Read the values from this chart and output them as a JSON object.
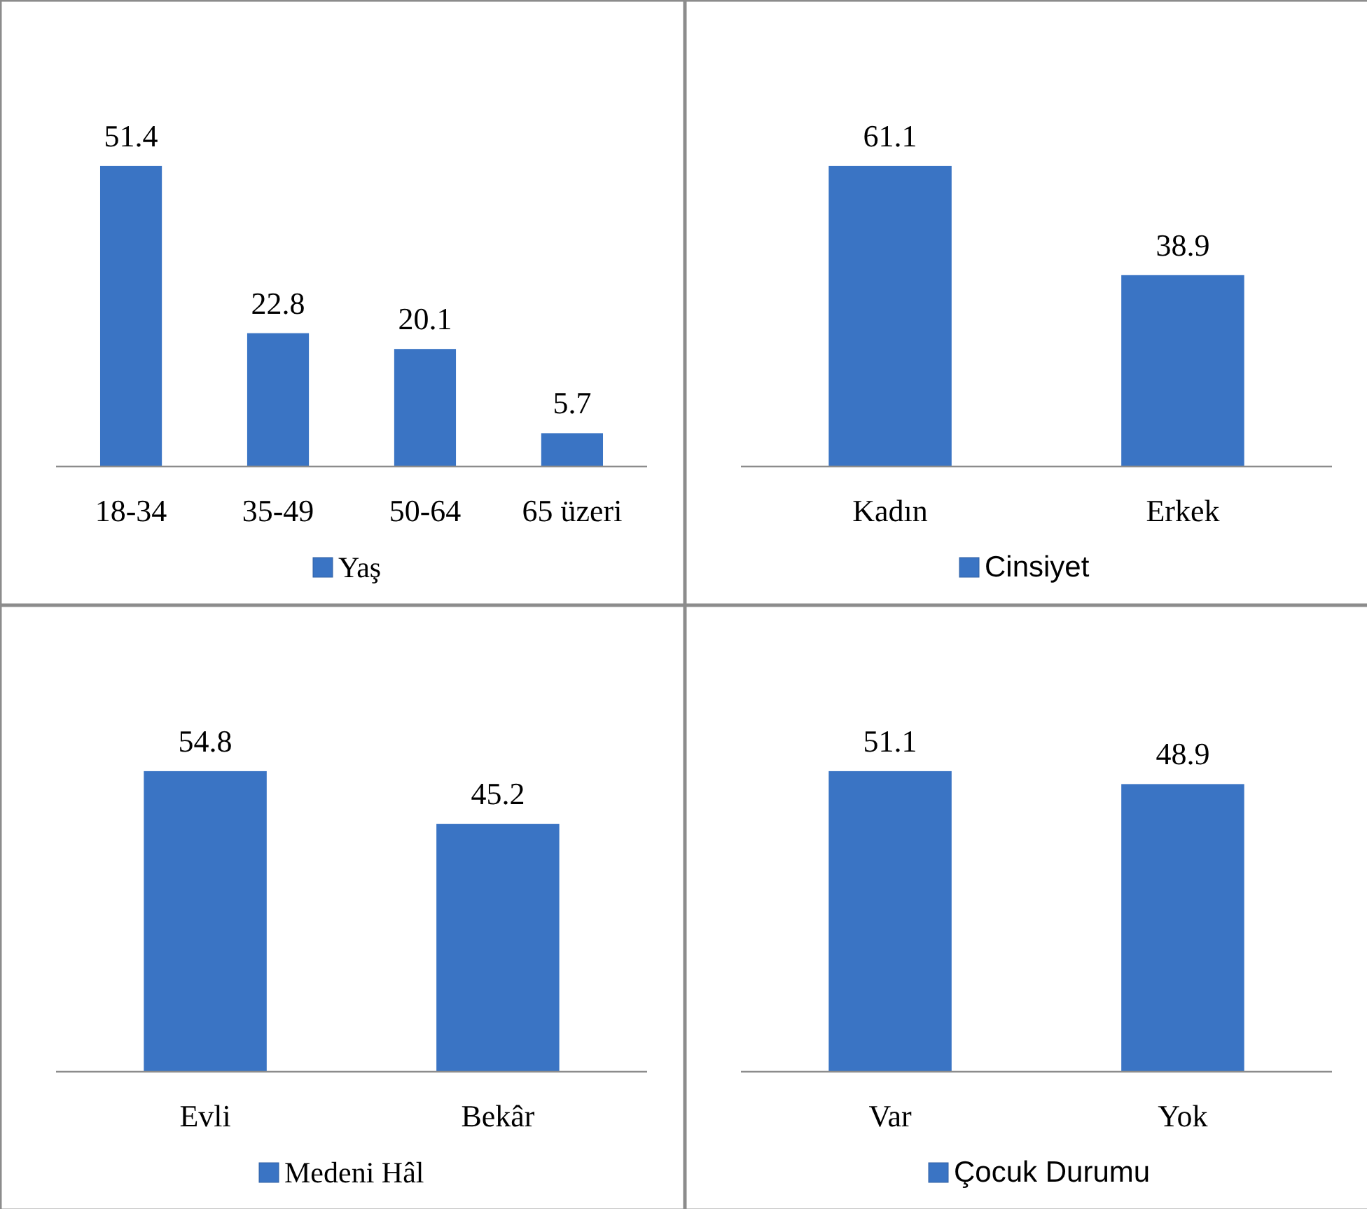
{
  "chart_data": [
    {
      "type": "bar",
      "categories": [
        "18-34",
        "35-49",
        "50-64",
        "65 üzeri"
      ],
      "series": [
        {
          "name": "Yaş",
          "color": "#3a74c4",
          "values": [
            51.4,
            22.8,
            20.1,
            5.7
          ]
        }
      ],
      "data_labels": true,
      "legend": "bottom",
      "tick_labels": "x"
    },
    {
      "type": "bar",
      "categories": [
        "Kadın",
        "Erkek"
      ],
      "series": [
        {
          "name": "Cinsiyet",
          "color": "#3a74c4",
          "values": [
            61.1,
            38.9
          ]
        }
      ],
      "data_labels": true,
      "legend": "bottom",
      "tick_labels": "x"
    },
    {
      "type": "bar",
      "categories": [
        "Evli",
        "Bekâr"
      ],
      "series": [
        {
          "name": "Medeni Hâl",
          "color": "#3a74c4",
          "values": [
            54.8,
            45.2
          ]
        }
      ],
      "data_labels": true,
      "legend": "bottom",
      "tick_labels": "x"
    },
    {
      "type": "bar",
      "categories": [
        "Var",
        "Yok"
      ],
      "series": [
        {
          "name": "Çocuk Durumu",
          "color": "#3a74c4",
          "values": [
            51.1,
            48.9
          ]
        }
      ],
      "data_labels": true,
      "legend": "bottom",
      "tick_labels": "x"
    }
  ]
}
